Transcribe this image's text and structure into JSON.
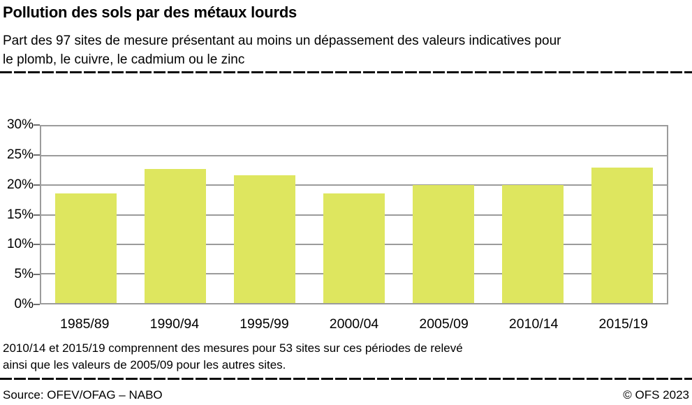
{
  "header": {
    "title": "Pollution des sols par des métaux lourds",
    "subtitle_lines": [
      "Part des 97 sites de mesure présentant au moins un dépassement des valeurs indicatives pour",
      "le plomb, le cuivre, le cadmium ou le zinc"
    ]
  },
  "chart_data": {
    "type": "bar",
    "categories": [
      "1985/89",
      "1990/94",
      "1995/99",
      "2000/04",
      "2005/09",
      "2010/14",
      "2015/19"
    ],
    "values": [
      18.6,
      22.8,
      21.7,
      18.6,
      20.0,
      20.0,
      23.0
    ],
    "title": "Pollution des sols par des métaux lourds",
    "xlabel": "",
    "ylabel": "",
    "ylim": [
      0,
      30
    ],
    "yticks": [
      0,
      5,
      10,
      15,
      20,
      25,
      30
    ],
    "ytick_labels": [
      "0%",
      "5%",
      "10%",
      "15%",
      "20%",
      "25%",
      "30%"
    ],
    "grid": "horizontal",
    "legend": "none",
    "bar_color": "#dee65f",
    "grid_color": "#9b9b9b"
  },
  "footnote": {
    "lines": [
      "2010/14 et 2015/19 comprennent des mesures pour 53 sites sur ces périodes de relevé",
      "ainsi que les valeurs de 2005/09 pour les autres sites."
    ]
  },
  "footer": {
    "source": "Source: OFEV/OFAG – NABO",
    "copyright": "© OFS 2023"
  }
}
